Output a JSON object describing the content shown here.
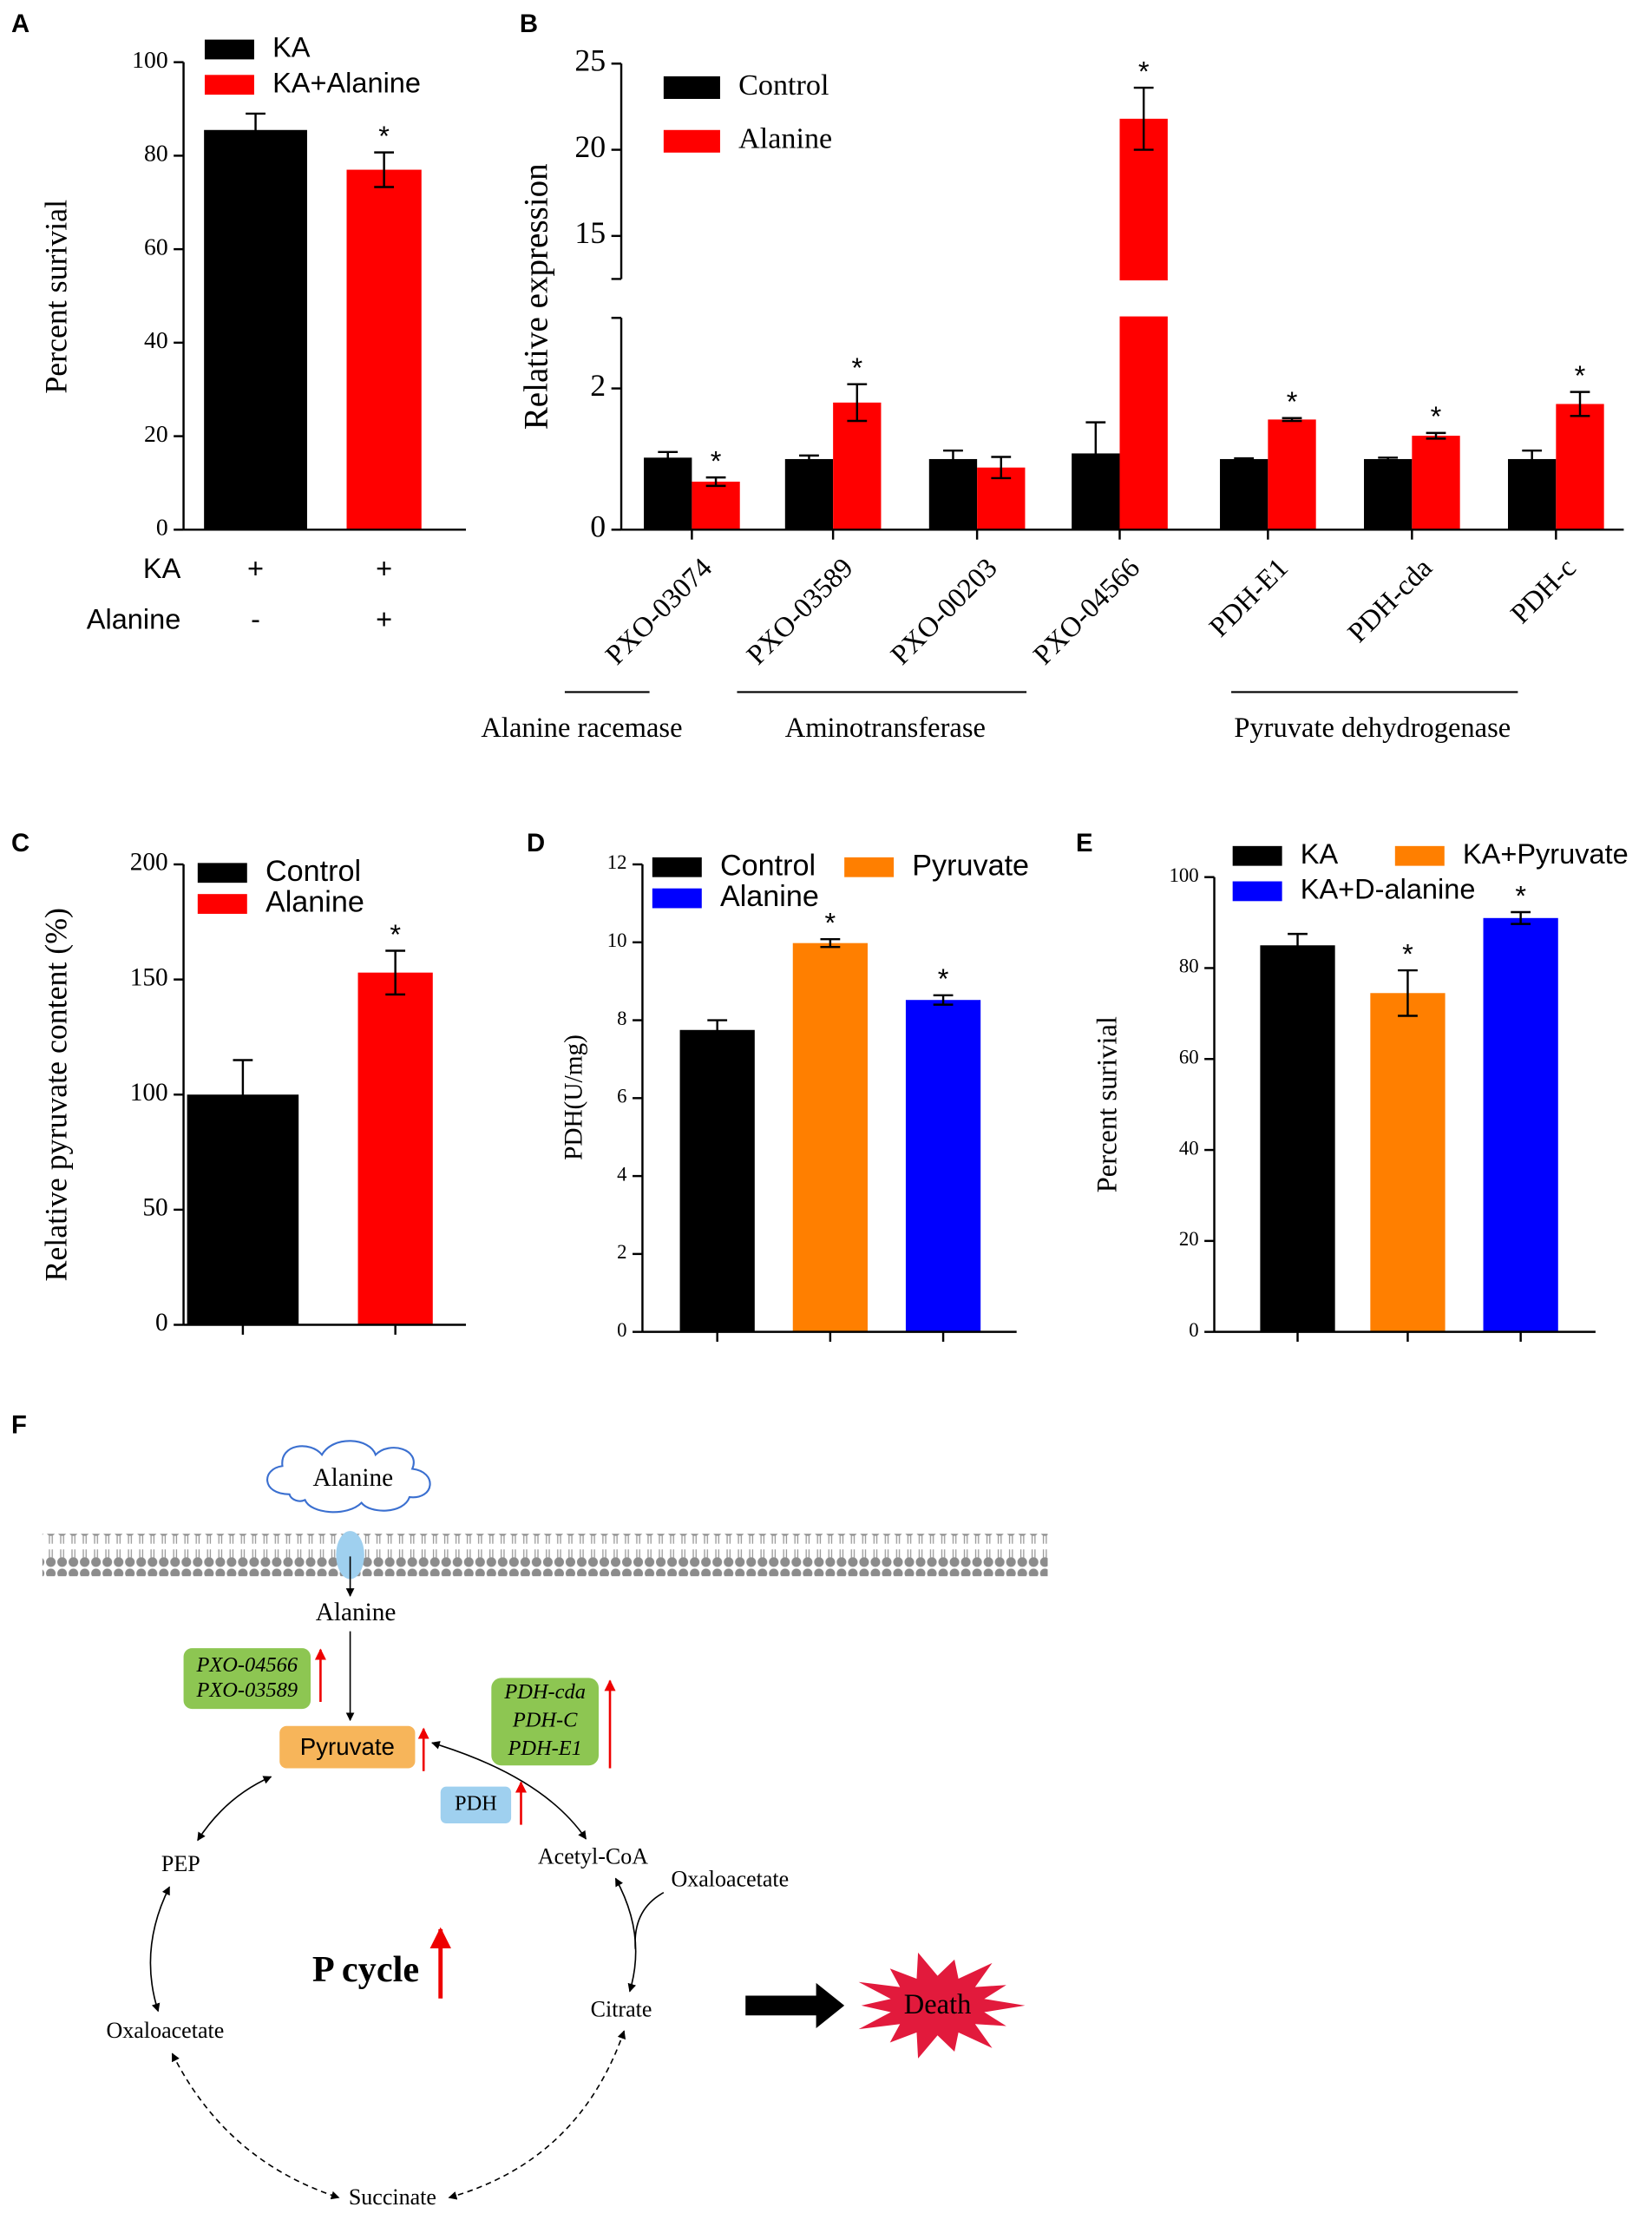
{
  "chart_data": [
    {
      "panel": "A",
      "type": "bar",
      "ylabel": "Percent surivial",
      "ylim": [
        0,
        100
      ],
      "yticks": [
        0,
        20,
        40,
        60,
        80,
        100
      ],
      "series": [
        {
          "name": "KA",
          "color": "#000000",
          "values": [
            85.5
          ],
          "errors": [
            3.5
          ]
        },
        {
          "name": "KA+Alanine",
          "color": "#ff0000",
          "values": [
            77
          ],
          "errors": [
            3.7
          ],
          "significance": [
            "*"
          ]
        }
      ],
      "conditions": [
        {
          "name": "KA",
          "marks": [
            "+",
            "+"
          ]
        },
        {
          "name": "Alanine",
          "marks": [
            "-",
            "+"
          ]
        }
      ]
    },
    {
      "panel": "B",
      "type": "bar",
      "ylabel": "Relative expression",
      "segments": [
        {
          "ylim": [
            0,
            3
          ],
          "yticks": [
            0,
            2
          ]
        },
        {
          "ylim": [
            12.5,
            25
          ],
          "yticks": [
            15,
            20,
            25
          ]
        }
      ],
      "categories": [
        "PXO-03074",
        "PXO-03589",
        "PXO-00203",
        "PXO-04566",
        "PDH-E1",
        "PDH-cda",
        "PDH-c"
      ],
      "series": [
        {
          "name": "Control",
          "color": "#000000",
          "values": [
            1.02,
            1.0,
            1.0,
            1.08,
            1.0,
            1.0,
            1.0
          ],
          "errors": [
            0.08,
            0.05,
            0.12,
            0.44,
            0.01,
            0.02,
            0.12
          ]
        },
        {
          "name": "Alanine",
          "color": "#ff0000",
          "values": [
            0.68,
            1.8,
            0.88,
            21.8,
            1.56,
            1.33,
            1.78
          ],
          "errors": [
            0.06,
            0.26,
            0.15,
            1.8,
            0.02,
            0.04,
            0.17
          ],
          "significance": [
            "*",
            "*",
            null,
            "*",
            "*",
            "*",
            "*"
          ]
        }
      ],
      "group_labels": [
        "Alanine racemase",
        "Aminotransferase",
        "Pyruvate dehydrogenase"
      ]
    },
    {
      "panel": "C",
      "type": "bar",
      "ylabel": "Relative pyruvate content (%)",
      "ylim": [
        0,
        200
      ],
      "yticks": [
        0,
        50,
        100,
        150,
        200
      ],
      "series": [
        {
          "name": "Control",
          "color": "#000000",
          "values": [
            100
          ],
          "errors": [
            15
          ]
        },
        {
          "name": "Alanine",
          "color": "#ff0000",
          "values": [
            153
          ],
          "errors": [
            9.5
          ],
          "significance": [
            "*"
          ]
        }
      ]
    },
    {
      "panel": "D",
      "type": "bar",
      "ylabel": "PDH(U/mg)",
      "ylim": [
        0,
        12
      ],
      "yticks": [
        0,
        2,
        4,
        6,
        8,
        10,
        12
      ],
      "series": [
        {
          "name": "Control",
          "color": "#000000",
          "values": [
            7.75
          ],
          "errors": [
            0.25
          ]
        },
        {
          "name": "Pyruvate",
          "color": "#ff7f00",
          "values": [
            9.98
          ],
          "errors": [
            0.1
          ],
          "significance": [
            "*"
          ]
        },
        {
          "name": "Alanine",
          "color": "#0000ff",
          "values": [
            8.52
          ],
          "errors": [
            0.12
          ],
          "significance": [
            "*"
          ]
        }
      ]
    },
    {
      "panel": "E",
      "type": "bar",
      "ylabel": "Percent surivial",
      "ylim": [
        0,
        100
      ],
      "yticks": [
        0,
        20,
        40,
        60,
        80,
        100
      ],
      "series": [
        {
          "name": "KA",
          "color": "#000000",
          "values": [
            85
          ],
          "errors": [
            2.5
          ]
        },
        {
          "name": "KA+Pyruvate",
          "color": "#ff7f00",
          "values": [
            74.5
          ],
          "errors": [
            5
          ],
          "significance": [
            "*"
          ]
        },
        {
          "name": "KA+D-alanine",
          "color": "#0000ff",
          "values": [
            91
          ],
          "errors": [
            1.3
          ],
          "significance": [
            "*"
          ]
        }
      ]
    }
  ],
  "diagram": {
    "panel": "F",
    "cloud": "Alanine",
    "alanine": "Alanine",
    "genes_1": [
      "PXO-04566",
      "PXO-03589"
    ],
    "pyruvate": "Pyruvate",
    "genes_2": [
      "PDH-cda",
      "PDH-C",
      "PDH-E1"
    ],
    "enzyme": "PDH",
    "pep": "PEP",
    "acetyl_coa": "Acetyl-CoA",
    "oxaloacetate_in": "Oxaloacetate",
    "cycle": "P cycle",
    "oxaloacetate": "Oxaloacetate",
    "citrate": "Citrate",
    "succinate": "Succinate",
    "outcome": "Death"
  }
}
